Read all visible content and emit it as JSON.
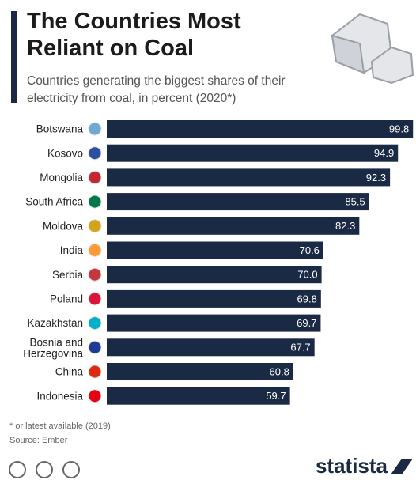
{
  "chart_data": {
    "type": "bar",
    "orientation": "horizontal",
    "title": "The Countries Most Reliant on Coal",
    "subtitle": "Countries generating the biggest shares of their electricity from coal, in percent (2020*)",
    "categories": [
      "Botswana",
      "Kosovo",
      "Mongolia",
      "South Africa",
      "Moldova",
      "India",
      "Serbia",
      "Poland",
      "Kazakhstan",
      "Bosnia and Herzegovina",
      "China",
      "Indonesia"
    ],
    "values": [
      99.8,
      94.9,
      92.3,
      85.5,
      82.3,
      70.6,
      70.0,
      69.8,
      69.7,
      67.7,
      60.8,
      59.7
    ],
    "value_labels": [
      "99.8",
      "94.9",
      "92.3",
      "85.5",
      "82.3",
      "70.6",
      "70.0",
      "69.8",
      "69.7",
      "67.7",
      "60.8",
      "59.7"
    ],
    "color": "#1b2a44",
    "xlim": [
      0,
      100
    ],
    "note": "* or latest available (2019)",
    "source": "Source: Ember",
    "brand": "statista"
  }
}
